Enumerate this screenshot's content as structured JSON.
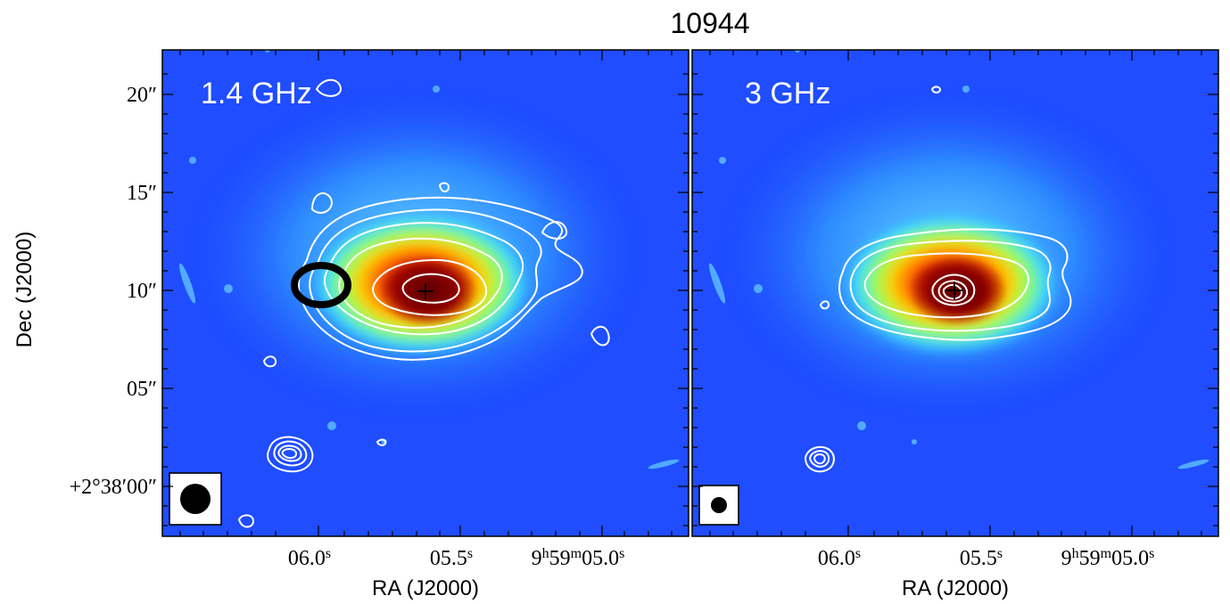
{
  "figure": {
    "title": "10944",
    "ylabel": "Dec (J2000)",
    "xlabel": "RA (J2000)",
    "y_tick_labels": [
      "20″",
      "15″",
      "10″",
      "05″",
      "+2°38′00″"
    ],
    "x_tick_labels": [
      "06.0",
      "05.5",
      "9h59m05.0"
    ]
  },
  "panels": [
    {
      "frequency_label": "1.4 GHz",
      "x_ticks": [
        {
          "main": "06.0",
          "sup": "s"
        },
        {
          "main": "05.5",
          "sup": "s"
        },
        {
          "main": "9",
          "sup": "h",
          "main2": "59",
          "sup2": "m",
          "main3": "05.0",
          "sup3": "s"
        }
      ]
    },
    {
      "frequency_label": "3 GHz",
      "x_ticks": [
        {
          "main": "06.0",
          "sup": "s"
        },
        {
          "main": "05.5",
          "sup": "s"
        },
        {
          "main": "9",
          "sup": "h",
          "main2": "59",
          "sup2": "m",
          "main3": "05.0",
          "sup3": "s"
        }
      ]
    }
  ],
  "colors": {
    "background_map": "#1f4dff",
    "halo": "#43c7ff",
    "mid": "#b8ff3c",
    "warm": "#ff8a00",
    "core": "#b00000",
    "contours": "#ffffff",
    "marker_ellipse": "#000000"
  },
  "icons": {
    "beam_1": "filled-circle",
    "beam_2": "filled-circle",
    "core_marker": "crosshair"
  }
}
